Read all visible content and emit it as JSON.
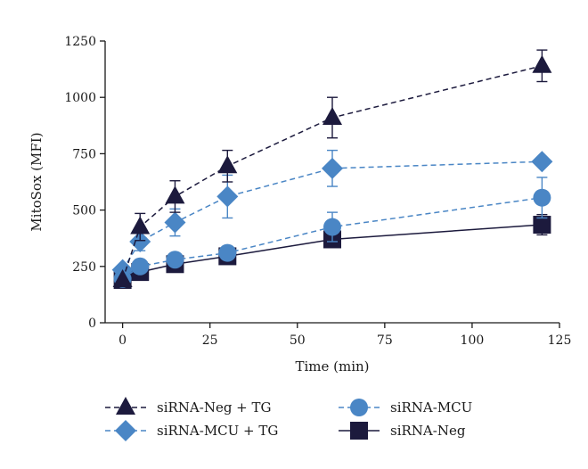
{
  "chart_data": {
    "type": "line",
    "xlabel": "Time (min)",
    "ylabel": "MitoSox (MFI)",
    "xlim": [
      -5,
      125
    ],
    "ylim": [
      0,
      1250
    ],
    "xticks": [
      0,
      25,
      50,
      75,
      100,
      125
    ],
    "yticks": [
      0,
      250,
      500,
      750,
      1000,
      1250
    ],
    "grid": false,
    "legend_position": "bottom",
    "x": [
      0,
      5,
      15,
      30,
      60,
      120
    ],
    "series": [
      {
        "name": "siRNA-Neg + TG",
        "values": [
          190,
          425,
          560,
          695,
          910,
          1140
        ],
        "errors": [
          0,
          60,
          70,
          70,
          90,
          70
        ],
        "color": "#1c1a3d",
        "marker": "triangle",
        "line_style": "dashed"
      },
      {
        "name": "siRNA-MCU + TG",
        "values": [
          235,
          360,
          445,
          560,
          685,
          715
        ],
        "errors": [
          0,
          40,
          60,
          95,
          80,
          0
        ],
        "color": "#4a86c5",
        "marker": "diamond",
        "line_style": "dashed"
      },
      {
        "name": "siRNA-MCU",
        "values": [
          195,
          250,
          280,
          310,
          425,
          555
        ],
        "errors": [
          0,
          0,
          0,
          0,
          65,
          90
        ],
        "color": "#4a86c5",
        "marker": "circle",
        "line_style": "dashed"
      },
      {
        "name": "siRNA-Neg",
        "values": [
          190,
          225,
          260,
          295,
          370,
          435
        ],
        "errors": [
          0,
          0,
          0,
          0,
          0,
          45
        ],
        "color": "#1c1a3d",
        "marker": "square",
        "line_style": "solid"
      }
    ],
    "legend_order": [
      0,
      2,
      1,
      3
    ]
  }
}
